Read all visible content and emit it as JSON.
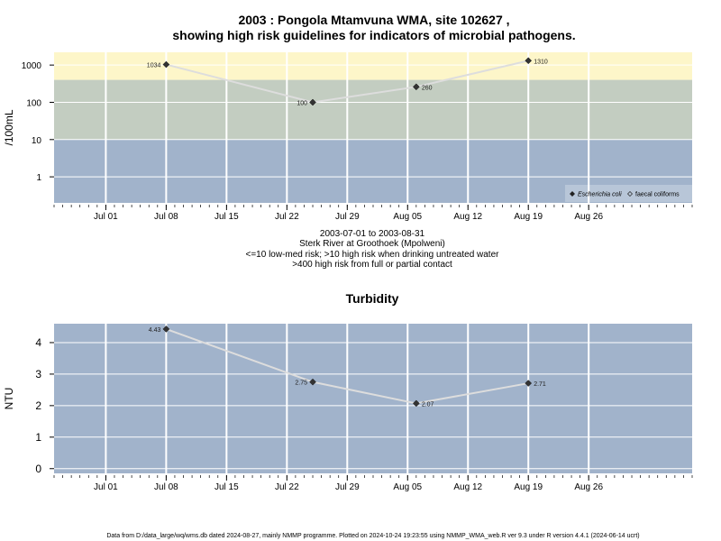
{
  "title_line1": "2003 : Pongola Mtamvuna WMA, site 102627 ,",
  "title_line2": "showing high risk guidelines for indicators of microbial pathogens.",
  "caption": [
    "2003-07-01 to 2003-08-31",
    "Sterk River at Groothoek (Mpolweni)",
    "<=10 low-med risk; >10 high risk when drinking untreated water",
    ">400 high risk from full or partial contact"
  ],
  "footer": "Data from D:/data_large/wq/wms.db dated 2024-08-27, mainly NMMP programme. Plotted on 2024-10-24 19:23:55 using NMMP_WMA_web.R ver 9.3 under R version 4.4.1 (2024-06-14 ucrt)",
  "colors": {
    "band_high_contact": "#fdf6c9",
    "band_high_drinking": "#c3cdc1",
    "band_low": "#a1b3cb",
    "grid": "#ffffff",
    "line": "#dddddd",
    "point": "#333333"
  },
  "chart_data": [
    {
      "type": "line",
      "ylabel": "/100mL",
      "y_scale": "log",
      "xlim": [
        "2003-06-25",
        "2003-09-07"
      ],
      "x_ticks": [
        {
          "date": "2003-07-01",
          "label": "Jul 01"
        },
        {
          "date": "2003-07-08",
          "label": "Jul 08"
        },
        {
          "date": "2003-07-15",
          "label": "Jul 15"
        },
        {
          "date": "2003-07-22",
          "label": "Jul 22"
        },
        {
          "date": "2003-07-29",
          "label": "Jul 29"
        },
        {
          "date": "2003-08-05",
          "label": "Aug 05"
        },
        {
          "date": "2003-08-12",
          "label": "Aug 12"
        },
        {
          "date": "2003-08-19",
          "label": "Aug 19"
        },
        {
          "date": "2003-08-26",
          "label": "Aug 26"
        }
      ],
      "y_ticks": [
        1,
        10,
        100,
        1000
      ],
      "y_tick_labels": [
        "1",
        "10",
        "100",
        "1000"
      ],
      "bands": [
        {
          "from": 400,
          "to": "top",
          "color": "#fdf6c9"
        },
        {
          "from": 10,
          "to": 400,
          "color": "#c3cdc1"
        },
        {
          "from": "bottom",
          "to": 10,
          "color": "#a1b3cb"
        }
      ],
      "grid": true,
      "legend_position": "bottom-right",
      "legend": [
        {
          "marker": "filled-diamond",
          "label": "Escherichia coli",
          "italic": true
        },
        {
          "marker": "open-diamond",
          "label": "faecal coliforms",
          "italic": false
        }
      ],
      "series": [
        {
          "name": "Escherichia coli",
          "points": [
            {
              "x": "2003-07-08",
              "y": 1034,
              "label": "1034",
              "label_side": "left"
            },
            {
              "x": "2003-07-25",
              "y": 100,
              "label": "100",
              "label_side": "left"
            },
            {
              "x": "2003-08-06",
              "y": 260,
              "label": "260",
              "label_side": "right"
            },
            {
              "x": "2003-08-19",
              "y": 1310,
              "label": "1310",
              "label_side": "right"
            }
          ]
        }
      ]
    },
    {
      "type": "line",
      "title": "Turbidity",
      "ylabel": "NTU",
      "y_scale": "linear",
      "xlim": [
        "2003-06-25",
        "2003-09-07"
      ],
      "ylim": [
        -0.15,
        4.6
      ],
      "x_ticks": [
        {
          "date": "2003-07-01",
          "label": "Jul 01"
        },
        {
          "date": "2003-07-08",
          "label": "Jul 08"
        },
        {
          "date": "2003-07-15",
          "label": "Jul 15"
        },
        {
          "date": "2003-07-22",
          "label": "Jul 22"
        },
        {
          "date": "2003-07-29",
          "label": "Jul 29"
        },
        {
          "date": "2003-08-05",
          "label": "Aug 05"
        },
        {
          "date": "2003-08-12",
          "label": "Aug 12"
        },
        {
          "date": "2003-08-19",
          "label": "Aug 19"
        },
        {
          "date": "2003-08-26",
          "label": "Aug 26"
        }
      ],
      "y_ticks": [
        0,
        1,
        2,
        3,
        4
      ],
      "y_tick_labels": [
        "0",
        "1",
        "2",
        "3",
        "4"
      ],
      "grid": true,
      "series": [
        {
          "points": [
            {
              "x": "2003-07-08",
              "y": 4.43,
              "label": "4.43",
              "label_side": "left"
            },
            {
              "x": "2003-07-25",
              "y": 2.75,
              "label": "2.75",
              "label_side": "left"
            },
            {
              "x": "2003-08-06",
              "y": 2.07,
              "label": "2.07",
              "label_side": "right"
            },
            {
              "x": "2003-08-19",
              "y": 2.71,
              "label": "2.71",
              "label_side": "right"
            }
          ]
        }
      ]
    }
  ]
}
